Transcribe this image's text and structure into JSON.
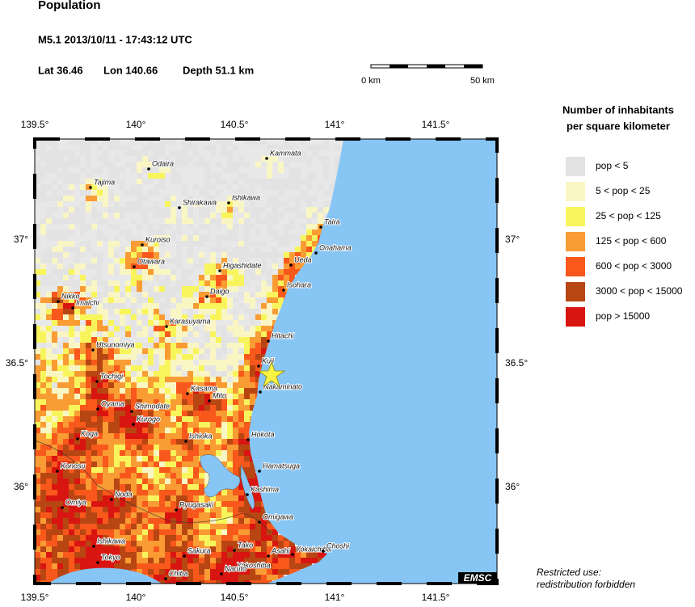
{
  "header": {
    "title": "Population",
    "event": "M5.1  2013/10/11 - 17:43:12 UTC",
    "lat": "Lat 36.46",
    "lon": "Lon 140.66",
    "depth": "Depth  51.1 km"
  },
  "scale_bar": {
    "start": "0 km",
    "end": "50 km"
  },
  "map": {
    "lon_labels": [
      "139.5°",
      "140°",
      "140.5°",
      "141°",
      "141.5°"
    ],
    "lat_labels": [
      "37°",
      "36.5°",
      "36°"
    ],
    "credit": "EMSC",
    "cities": [
      "Kammata",
      "Odaira",
      "Tajima",
      "Shirakawa",
      "Ishikawa",
      "Taira",
      "Onahama",
      "Kuroiso",
      "Otawara",
      "Higashidate",
      "Ueda",
      "Daigo",
      "Isohara",
      "Nikko",
      "Imaichi",
      "Karasuyama",
      "Hitachi",
      "Utsunomiya",
      "Kuji",
      "Tochigi",
      "Kasama",
      "Mito",
      "Nakaminato",
      "Oyama",
      "Shimodate",
      "Kurogo",
      "Koga",
      "Ishioka",
      "Hokota",
      "Konosu",
      "Hamatsuga",
      "Noda",
      "Kashima",
      "Omiya",
      "Ryugasaki",
      "Omigawa",
      "Ishikawa",
      "Tako",
      "Sakura",
      "Asahi",
      "Yokaichiba",
      "Choshi",
      "Tokyo",
      "Yokoshiba",
      "Chiba",
      "Naruto"
    ]
  },
  "legend": {
    "title": [
      "Number of inhabitants",
      "per square kilometer"
    ],
    "items": [
      {
        "label": "pop < 5",
        "color": "#e3e3e3"
      },
      {
        "label": "5 < pop < 25",
        "color": "#faf6c4"
      },
      {
        "label": "25 < pop < 125",
        "color": "#f8f55c"
      },
      {
        "label": "125 < pop < 600",
        "color": "#f99c34"
      },
      {
        "label": "600 < pop < 3000",
        "color": "#f8581c"
      },
      {
        "label": "3000 < pop < 15000",
        "color": "#b84613"
      },
      {
        "label": "pop > 15000",
        "color": "#d81510"
      }
    ]
  },
  "footer": [
    "Restricted use:",
    "redistribution forbidden"
  ]
}
